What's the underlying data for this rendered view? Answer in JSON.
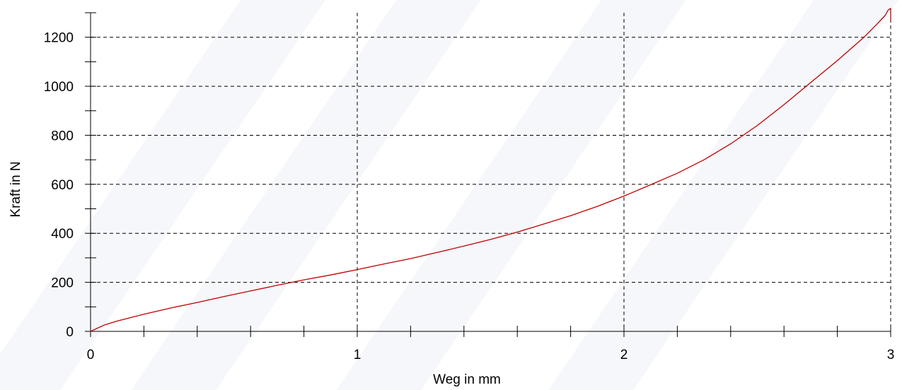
{
  "chart_data": {
    "type": "line",
    "title": "",
    "xlabel": "Weg in mm",
    "ylabel": "Kraft in N",
    "xlim": [
      0,
      3
    ],
    "ylim": [
      0,
      1300
    ],
    "x_ticks": [
      0,
      1,
      2,
      3
    ],
    "y_ticks": [
      0,
      200,
      400,
      600,
      800,
      1000,
      1200
    ],
    "x_tick_labels": [
      "0",
      "1",
      "2",
      "3"
    ],
    "y_tick_labels": [
      "0",
      "200",
      "400",
      "600",
      "800",
      "1000",
      "1200"
    ],
    "x_minor_step": 0.2,
    "y_minor_step": 100,
    "grid": true,
    "grid_style": "dashed",
    "legend": "none",
    "colors": {
      "series": "#c00000",
      "axis": "#000000",
      "grid": "#000000",
      "watermark": "#eef0f6"
    },
    "series": [
      {
        "color": "#c00000",
        "x": [
          0,
          0.05,
          0.1,
          0.2,
          0.3,
          0.4,
          0.5,
          0.6,
          0.7,
          0.8,
          0.9,
          1.0,
          1.1,
          1.2,
          1.3,
          1.4,
          1.5,
          1.6,
          1.7,
          1.8,
          1.9,
          2.0,
          2.1,
          2.2,
          2.3,
          2.4,
          2.5,
          2.6,
          2.7,
          2.8,
          2.9,
          2.95,
          2.98,
          2.99,
          3.0,
          3.0
        ],
        "y": [
          0,
          25,
          42,
          70,
          95,
          118,
          142,
          165,
          188,
          210,
          230,
          252,
          275,
          297,
          322,
          348,
          375,
          405,
          438,
          472,
          510,
          552,
          598,
          645,
          700,
          765,
          840,
          925,
          1015,
          1105,
          1200,
          1255,
          1290,
          1310,
          1318,
          1265
        ]
      }
    ]
  }
}
